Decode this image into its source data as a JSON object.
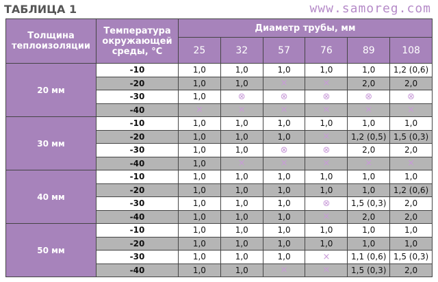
{
  "header": {
    "title": "ТАБЛИЦА 1",
    "website": "www.samoreg.com"
  },
  "table": {
    "columns": {
      "thickness": "Толщина теплоизоляции",
      "temperature": "Температура окружающей среды, °C",
      "diameter": "Диаметр трубы, мм",
      "diameters": [
        "25",
        "32",
        "57",
        "76",
        "89",
        "108"
      ]
    },
    "groups": [
      {
        "label": "20 мм",
        "rows": [
          {
            "temp": "-10",
            "cells": [
              "1,0",
              "1,0",
              "1,0",
              "1,0",
              "1,0",
              "1,2 (0,6)"
            ]
          },
          {
            "temp": "-20",
            "cells": [
              "1,0",
              "1,0",
              "×",
              "×",
              "2,0",
              "2,0"
            ]
          },
          {
            "temp": "-30",
            "cells": [
              "1,0",
              "⊗",
              "⊗",
              "⊗",
              "⊗",
              "⊗"
            ]
          },
          {
            "temp": "-40",
            "cells": [
              "×",
              "×",
              "×",
              "×",
              "×",
              "×"
            ]
          }
        ]
      },
      {
        "label": "30 мм",
        "rows": [
          {
            "temp": "-10",
            "cells": [
              "1,0",
              "1,0",
              "1,0",
              "1,0",
              "1,0",
              "1,0"
            ]
          },
          {
            "temp": "-20",
            "cells": [
              "1,0",
              "1,0",
              "1,0",
              "×",
              "1,2 (0,5)",
              "1,5 (0,3)"
            ]
          },
          {
            "temp": "-30",
            "cells": [
              "1,0",
              "1,0",
              "⊗",
              "⊗",
              "2,0",
              "2,0"
            ]
          },
          {
            "temp": "-40",
            "cells": [
              "1,0",
              "×",
              "×",
              "×",
              "×",
              "×"
            ]
          }
        ]
      },
      {
        "label": "40 мм",
        "rows": [
          {
            "temp": "-10",
            "cells": [
              "1,0",
              "1,0",
              "1,0",
              "1,0",
              "1,0",
              "1,0"
            ]
          },
          {
            "temp": "-20",
            "cells": [
              "1,0",
              "1,0",
              "1,0",
              "1,0",
              "1,0",
              "1,2 (0,6)"
            ]
          },
          {
            "temp": "-30",
            "cells": [
              "1,0",
              "1,0",
              "1,0",
              "⊗",
              "1,5 (0,3)",
              "2,0"
            ]
          },
          {
            "temp": "-40",
            "cells": [
              "1,0",
              "1,0",
              "1,0",
              "×",
              "2,0",
              "2,0"
            ]
          }
        ]
      },
      {
        "label": "50 мм",
        "rows": [
          {
            "temp": "-10",
            "cells": [
              "1,0",
              "1,0",
              "1,0",
              "1,0",
              "1,0",
              "1,0"
            ]
          },
          {
            "temp": "-20",
            "cells": [
              "1,0",
              "1,0",
              "1,0",
              "1,0",
              "1,0",
              "1,0"
            ]
          },
          {
            "temp": "-30",
            "cells": [
              "1,0",
              "1,0",
              "1,0",
              "×",
              "1,1 (0,6)",
              "1,5 (0,3)"
            ]
          },
          {
            "temp": "-40",
            "cells": [
              "1,0",
              "1,0",
              "×",
              "×",
              "1,5 (0,3)",
              "2,0"
            ]
          }
        ]
      }
    ]
  }
}
